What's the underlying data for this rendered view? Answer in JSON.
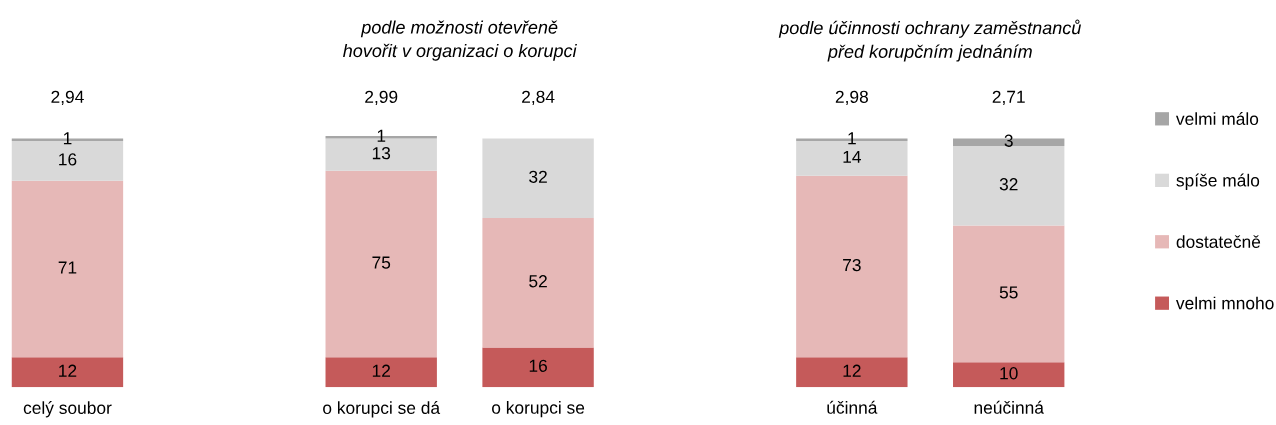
{
  "chart_data": {
    "type": "bar",
    "stacked": true,
    "data_labels": true,
    "legend": "right",
    "categories": [
      "celý soubor",
      null,
      "o korupci se dá",
      "o korupci se",
      null,
      "účinná",
      "neúčinná"
    ],
    "series": [
      {
        "name": "velmi mnoho",
        "color": "#c55a5a",
        "values": [
          12,
          null,
          12,
          16,
          null,
          12,
          10
        ]
      },
      {
        "name": "dostatečně",
        "color": "#e6b8b7",
        "values": [
          71,
          null,
          75,
          52,
          null,
          73,
          55
        ]
      },
      {
        "name": "spíše málo",
        "color": "#d9d9d9",
        "values": [
          16,
          null,
          13,
          32,
          null,
          14,
          32
        ]
      },
      {
        "name": "velmi málo",
        "color": "#a6a6a6",
        "values": [
          1,
          null,
          1,
          null,
          null,
          1,
          3
        ]
      }
    ],
    "annotations": [
      "podle možnosti otevřeně\nhovořit v organizaci o korupci",
      "podle účinnosti ochrany zaměstnanců\npřed korupčním jednáním",
      "2,94",
      "2,99",
      "2,84",
      "2,98",
      "2,71"
    ]
  }
}
